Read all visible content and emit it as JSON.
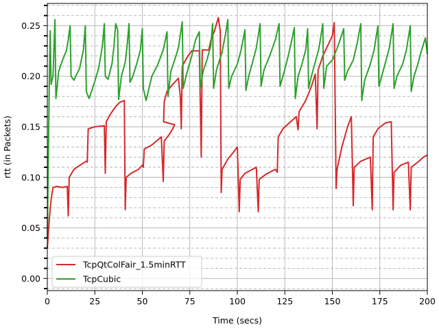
{
  "chart_data": {
    "type": "line",
    "xlabel": "Time (secs)",
    "ylabel": "rtt (in Packets)",
    "xlim": [
      0,
      200
    ],
    "ylim": [
      -0.012,
      0.272
    ],
    "x_ticks": [
      0,
      25,
      50,
      75,
      100,
      125,
      150,
      175,
      200
    ],
    "x_tick_labels": [
      "0",
      "25",
      "50",
      "75",
      "100",
      "125",
      "150",
      "175",
      "200"
    ],
    "y_ticks": [
      0.0,
      0.05,
      0.1,
      0.15,
      0.2,
      0.25
    ],
    "y_tick_labels": [
      "0.00",
      "0.05",
      "0.10",
      "0.15",
      "0.20",
      "0.25"
    ],
    "y_minor_step": 0.01,
    "grid": {
      "major": true,
      "minor_dashed_y": true
    },
    "legend_position": "lower-left",
    "series": [
      {
        "name": "TcpQtColFair_1.5minRTT",
        "color": "#d62728",
        "points": [
          [
            0,
            0.03
          ],
          [
            1,
            0.058
          ],
          [
            2,
            0.078
          ],
          [
            3,
            0.09
          ],
          [
            5,
            0.091
          ],
          [
            8,
            0.09
          ],
          [
            10.5,
            0.091
          ],
          [
            11,
            0.062
          ],
          [
            11.5,
            0.1
          ],
          [
            14,
            0.108
          ],
          [
            18,
            0.113
          ],
          [
            20.5,
            0.116
          ],
          [
            21,
            0.115
          ],
          [
            21.5,
            0.148
          ],
          [
            25,
            0.15
          ],
          [
            30,
            0.151
          ],
          [
            30.5,
            0.104
          ],
          [
            31,
            0.155
          ],
          [
            33,
            0.162
          ],
          [
            36,
            0.17
          ],
          [
            38,
            0.174
          ],
          [
            40.5,
            0.176
          ],
          [
            41,
            0.068
          ],
          [
            41.5,
            0.1
          ],
          [
            44,
            0.104
          ],
          [
            48,
            0.108
          ],
          [
            50,
            0.112
          ],
          [
            50.5,
            0.11
          ],
          [
            51,
            0.128
          ],
          [
            55,
            0.132
          ],
          [
            60,
            0.14
          ],
          [
            61,
            0.096
          ],
          [
            61.5,
            0.136
          ],
          [
            64,
            0.142
          ],
          [
            66,
            0.148
          ],
          [
            67,
            0.152
          ],
          [
            61.2,
            0.155
          ],
          [
            61.5,
            0.175
          ],
          [
            63,
            0.185
          ],
          [
            66,
            0.192
          ],
          [
            69,
            0.198
          ],
          [
            70,
            0.18
          ],
          [
            70.5,
            0.148
          ],
          [
            71,
            0.21
          ],
          [
            74,
            0.22
          ],
          [
            76,
            0.225
          ],
          [
            80,
            0.225
          ],
          [
            81,
            0.12
          ],
          [
            81.5,
            0.226
          ],
          [
            85,
            0.226
          ],
          [
            86,
            0.235
          ],
          [
            88,
            0.245
          ],
          [
            90,
            0.258
          ],
          [
            91,
            0.245
          ],
          [
            91.5,
            0.085
          ],
          [
            92,
            0.108
          ],
          [
            95,
            0.118
          ],
          [
            98,
            0.125
          ],
          [
            100,
            0.13
          ],
          [
            101,
            0.066
          ],
          [
            101.5,
            0.098
          ],
          [
            104,
            0.104
          ],
          [
            108,
            0.108
          ],
          [
            110,
            0.11
          ],
          [
            111,
            0.066
          ],
          [
            111.5,
            0.098
          ],
          [
            115,
            0.103
          ],
          [
            118,
            0.106
          ],
          [
            120,
            0.108
          ],
          [
            121,
            0.105
          ],
          [
            121.5,
            0.14
          ],
          [
            124,
            0.148
          ],
          [
            128,
            0.155
          ],
          [
            131,
            0.16
          ],
          [
            132,
            0.147
          ],
          [
            132.5,
            0.165
          ],
          [
            136,
            0.176
          ],
          [
            139,
            0.19
          ],
          [
            141,
            0.202
          ],
          [
            142,
            0.148
          ],
          [
            142.5,
            0.206
          ],
          [
            145,
            0.22
          ],
          [
            148,
            0.232
          ],
          [
            150,
            0.24
          ],
          [
            151,
            0.253
          ],
          [
            152,
            0.089
          ],
          [
            152.5,
            0.108
          ],
          [
            155,
            0.13
          ],
          [
            158,
            0.15
          ],
          [
            160,
            0.16
          ],
          [
            161,
            0.072
          ],
          [
            161.5,
            0.11
          ],
          [
            165,
            0.116
          ],
          [
            170,
            0.12
          ],
          [
            171,
            0.068
          ],
          [
            171.5,
            0.14
          ],
          [
            174,
            0.148
          ],
          [
            178,
            0.154
          ],
          [
            181,
            0.155
          ],
          [
            182,
            0.068
          ],
          [
            182.5,
            0.105
          ],
          [
            186,
            0.112
          ],
          [
            190,
            0.115
          ],
          [
            191,
            0.068
          ],
          [
            191.5,
            0.11
          ],
          [
            195,
            0.115
          ],
          [
            198,
            0.12
          ],
          [
            200,
            0.122
          ]
        ]
      },
      {
        "name": "TcpCubic",
        "color": "#2ca02c",
        "points": [
          [
            0,
            0.04
          ],
          [
            1,
            0.19
          ],
          [
            1.5,
            0.245
          ],
          [
            2,
            0.192
          ],
          [
            3,
            0.2
          ],
          [
            4,
            0.256
          ],
          [
            4.5,
            0.178
          ],
          [
            6,
            0.205
          ],
          [
            8,
            0.216
          ],
          [
            10,
            0.225
          ],
          [
            11,
            0.236
          ],
          [
            12,
            0.25
          ],
          [
            12.5,
            0.2
          ],
          [
            14,
            0.196
          ],
          [
            17,
            0.208
          ],
          [
            19,
            0.226
          ],
          [
            20,
            0.25
          ],
          [
            20.5,
            0.185
          ],
          [
            22,
            0.178
          ],
          [
            25,
            0.195
          ],
          [
            27,
            0.208
          ],
          [
            29,
            0.23
          ],
          [
            30,
            0.252
          ],
          [
            30.5,
            0.2
          ],
          [
            32,
            0.197
          ],
          [
            34,
            0.212
          ],
          [
            35,
            0.228
          ],
          [
            36,
            0.252
          ],
          [
            37,
            0.246
          ],
          [
            37.5,
            0.177
          ],
          [
            39,
            0.2
          ],
          [
            41,
            0.214
          ],
          [
            42,
            0.23
          ],
          [
            43,
            0.252
          ],
          [
            43.5,
            0.194
          ],
          [
            45,
            0.2
          ],
          [
            47,
            0.212
          ],
          [
            49,
            0.226
          ],
          [
            50,
            0.247
          ],
          [
            50.5,
            0.188
          ],
          [
            52,
            0.176
          ],
          [
            55,
            0.2
          ],
          [
            58,
            0.211
          ],
          [
            61,
            0.226
          ],
          [
            63,
            0.244
          ],
          [
            63.5,
            0.18
          ],
          [
            65,
            0.205
          ],
          [
            67,
            0.216
          ],
          [
            69,
            0.228
          ],
          [
            71,
            0.254
          ],
          [
            71.5,
            0.188
          ],
          [
            73,
            0.2
          ],
          [
            76,
            0.22
          ],
          [
            78,
            0.236
          ],
          [
            80,
            0.244
          ],
          [
            80.5,
            0.188
          ],
          [
            82,
            0.205
          ],
          [
            84,
            0.216
          ],
          [
            86,
            0.23
          ],
          [
            87,
            0.252
          ],
          [
            87.5,
            0.188
          ],
          [
            89,
            0.206
          ],
          [
            92,
            0.224
          ],
          [
            94,
            0.244
          ],
          [
            95,
            0.256
          ],
          [
            95.5,
            0.188
          ],
          [
            97,
            0.2
          ],
          [
            100,
            0.212
          ],
          [
            102,
            0.226
          ],
          [
            104,
            0.246
          ],
          [
            104.5,
            0.186
          ],
          [
            106,
            0.2
          ],
          [
            108,
            0.214
          ],
          [
            110,
            0.228
          ],
          [
            112,
            0.252
          ],
          [
            112.5,
            0.19
          ],
          [
            114,
            0.206
          ],
          [
            117,
            0.22
          ],
          [
            120,
            0.236
          ],
          [
            122,
            0.252
          ],
          [
            122.5,
            0.19
          ],
          [
            124,
            0.2
          ],
          [
            126,
            0.214
          ],
          [
            128,
            0.23
          ],
          [
            130,
            0.248
          ],
          [
            130.5,
            0.178
          ],
          [
            132,
            0.2
          ],
          [
            134,
            0.212
          ],
          [
            136,
            0.226
          ],
          [
            137,
            0.247
          ],
          [
            137.5,
            0.188
          ],
          [
            139,
            0.2
          ],
          [
            141,
            0.214
          ],
          [
            143,
            0.228
          ],
          [
            145,
            0.252
          ],
          [
            145.5,
            0.188
          ],
          [
            147,
            0.21
          ],
          [
            150,
            0.216
          ],
          [
            153,
            0.23
          ],
          [
            156,
            0.247
          ],
          [
            156.5,
            0.196
          ],
          [
            158,
            0.205
          ],
          [
            161,
            0.216
          ],
          [
            163,
            0.232
          ],
          [
            165,
            0.252
          ],
          [
            165.5,
            0.176
          ],
          [
            167,
            0.196
          ],
          [
            170,
            0.212
          ],
          [
            172,
            0.226
          ],
          [
            174,
            0.25
          ],
          [
            174.5,
            0.19
          ],
          [
            176,
            0.2
          ],
          [
            178,
            0.214
          ],
          [
            180,
            0.228
          ],
          [
            182,
            0.252
          ],
          [
            182.5,
            0.188
          ],
          [
            184,
            0.2
          ],
          [
            187,
            0.212
          ],
          [
            189,
            0.226
          ],
          [
            191,
            0.25
          ],
          [
            191.5,
            0.185
          ],
          [
            193,
            0.2
          ],
          [
            195,
            0.212
          ],
          [
            197,
            0.226
          ],
          [
            199,
            0.238
          ],
          [
            200,
            0.222
          ]
        ]
      }
    ]
  }
}
